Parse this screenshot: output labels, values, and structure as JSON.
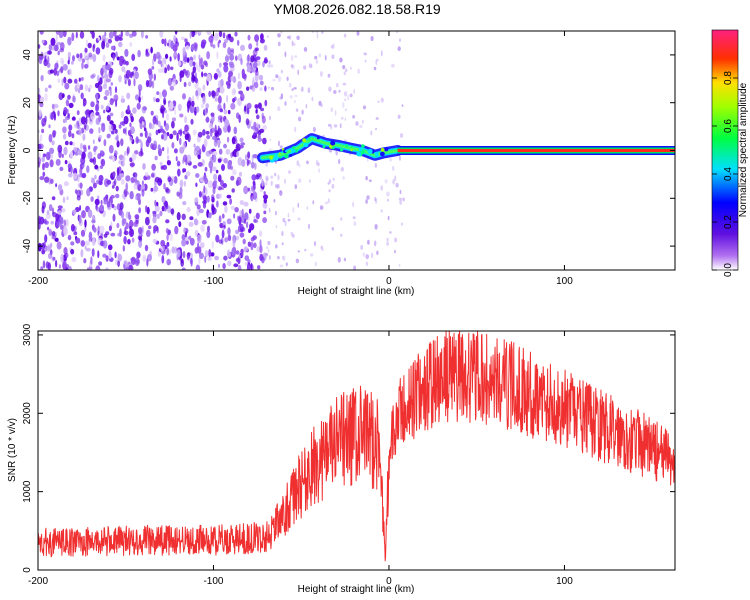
{
  "title": "YM08.2026.082.18.58.R19",
  "chart_data": [
    {
      "type": "heatmap",
      "name": "spectrogram",
      "xlabel": "Height of straight line (km)",
      "ylabel": "Frequency (Hz)",
      "xlim": [
        -200,
        163
      ],
      "ylim": [
        -50,
        50
      ],
      "xticks": [
        -200,
        -100,
        0,
        100
      ],
      "yticks": [
        -40,
        -20,
        0,
        20,
        40
      ],
      "xtick_labels": [
        "-200",
        "-100",
        "0",
        "100"
      ],
      "ytick_labels": [
        "-40",
        "-20",
        "0",
        "20",
        "40"
      ],
      "noise_region_km": [
        -200,
        -70
      ],
      "sparse_noise_region_km": [
        -70,
        10
      ],
      "signal_track": [
        {
          "x": -72,
          "f": -3
        },
        {
          "x": -62,
          "f": -2
        },
        {
          "x": -52,
          "f": 1
        },
        {
          "x": -44,
          "f": 5
        },
        {
          "x": -36,
          "f": 3
        },
        {
          "x": -28,
          "f": 2
        },
        {
          "x": -22,
          "f": 1
        },
        {
          "x": -15,
          "f": 0
        },
        {
          "x": -8,
          "f": -2
        },
        {
          "x": -3,
          "f": -1
        },
        {
          "x": 5,
          "f": 0
        },
        {
          "x": 163,
          "f": 0
        }
      ],
      "colorbar": {
        "label": "Normalized spectral amplitude",
        "range": [
          0,
          1
        ],
        "ticks": [
          0.0,
          0.2,
          0.4,
          0.6,
          0.8
        ],
        "tick_labels": [
          "0.0",
          "0.2",
          "0.4",
          "0.6",
          "0.8"
        ],
        "colormap": "rainbow (white-violet-blue-cyan-green-yellow-red-magenta)"
      }
    },
    {
      "type": "line",
      "name": "snr",
      "xlabel": "Height of straight line (km)",
      "ylabel": "SNR (10 * v/v)",
      "xlim": [
        -200,
        163
      ],
      "ylim": [
        0,
        3050
      ],
      "xticks": [
        -200,
        -100,
        0,
        100
      ],
      "yticks": [
        0,
        1000,
        2000,
        3000
      ],
      "xtick_labels": [
        "-200",
        "-100",
        "0",
        "100"
      ],
      "ytick_labels": [
        "0",
        "1000",
        "2000",
        "3000"
      ],
      "color": "#f03030",
      "series": [
        {
          "name": "SNR",
          "x": [
            -200,
            -180,
            -160,
            -140,
            -120,
            -100,
            -80,
            -70,
            -60,
            -50,
            -40,
            -30,
            -20,
            -10,
            -5,
            -2,
            0,
            5,
            10,
            20,
            30,
            40,
            50,
            60,
            70,
            80,
            90,
            100,
            110,
            120,
            130,
            140,
            150,
            163
          ],
          "y": [
            350,
            350,
            370,
            380,
            380,
            380,
            400,
            420,
            700,
            1100,
            1400,
            1600,
            1700,
            1700,
            1500,
            100,
            1500,
            1900,
            2100,
            2300,
            2450,
            2500,
            2450,
            2400,
            2350,
            2250,
            2150,
            2050,
            1950,
            1850,
            1750,
            1650,
            1550,
            1350
          ]
        }
      ]
    }
  ]
}
